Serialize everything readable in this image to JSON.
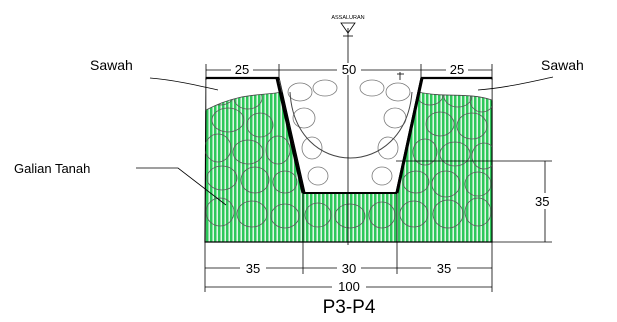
{
  "top_marker": "ASSALURAN",
  "labels": {
    "left_field": "Sawah",
    "right_field": "Sawah",
    "excavation": "Galian Tanah"
  },
  "dimensions": {
    "top_left": "25",
    "top_middle": "50",
    "top_right": "25",
    "depth": "35",
    "bottom_left": "35",
    "bottom_middle": "30",
    "bottom_right": "35",
    "total": "100"
  },
  "section_title": "P3-P4",
  "colors": {
    "soil_fill": "#2ec85a",
    "soil_hatch": "#ffffff",
    "line": "#000000"
  }
}
